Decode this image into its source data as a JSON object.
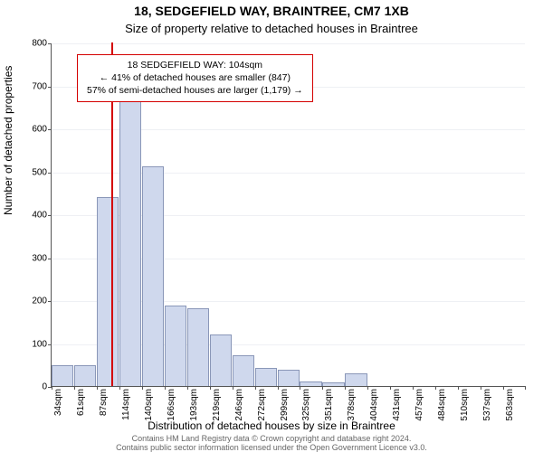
{
  "title_main": "18, SEDGEFIELD WAY, BRAINTREE, CM7 1XB",
  "title_sub": "Size of property relative to detached houses in Braintree",
  "ylabel": "Number of detached properties",
  "xlabel": "Distribution of detached houses by size in Braintree",
  "footer1": "Contains HM Land Registry data © Crown copyright and database right 2024.",
  "footer2": "Contains public sector information licensed under the Open Government Licence v3.0.",
  "callout": {
    "line1": "18 SEDGEFIELD WAY: 104sqm",
    "line2": "← 41% of detached houses are smaller (847)",
    "line3": "57% of semi-detached houses are larger (1,179) →"
  },
  "chart": {
    "ylim": [
      0,
      800
    ],
    "yticks": [
      0,
      100,
      200,
      300,
      400,
      500,
      600,
      700,
      800
    ],
    "xlabels": [
      "34sqm",
      "61sqm",
      "87sqm",
      "114sqm",
      "140sqm",
      "166sqm",
      "193sqm",
      "219sqm",
      "246sqm",
      "272sqm",
      "299sqm",
      "325sqm",
      "351sqm",
      "378sqm",
      "404sqm",
      "431sqm",
      "457sqm",
      "484sqm",
      "510sqm",
      "537sqm",
      "563sqm"
    ],
    "values": [
      48,
      48,
      440,
      668,
      512,
      188,
      182,
      120,
      72,
      42,
      38,
      10,
      8,
      30,
      0,
      0,
      0,
      0,
      0,
      0,
      0
    ],
    "marker_value": 104,
    "x_start": 34,
    "x_step": 26.5,
    "bar_color": "#cfd8ed",
    "bar_border": "#8a97b8",
    "grid_color": "#eef0f4",
    "marker_color": "#d40000",
    "bg": "#ffffff",
    "tick_fontsize": 10,
    "title_fontsize": 14,
    "sub_fontsize": 13,
    "label_fontsize": 12,
    "callout_fontsize": 10.5,
    "footer_fontsize": 9
  }
}
